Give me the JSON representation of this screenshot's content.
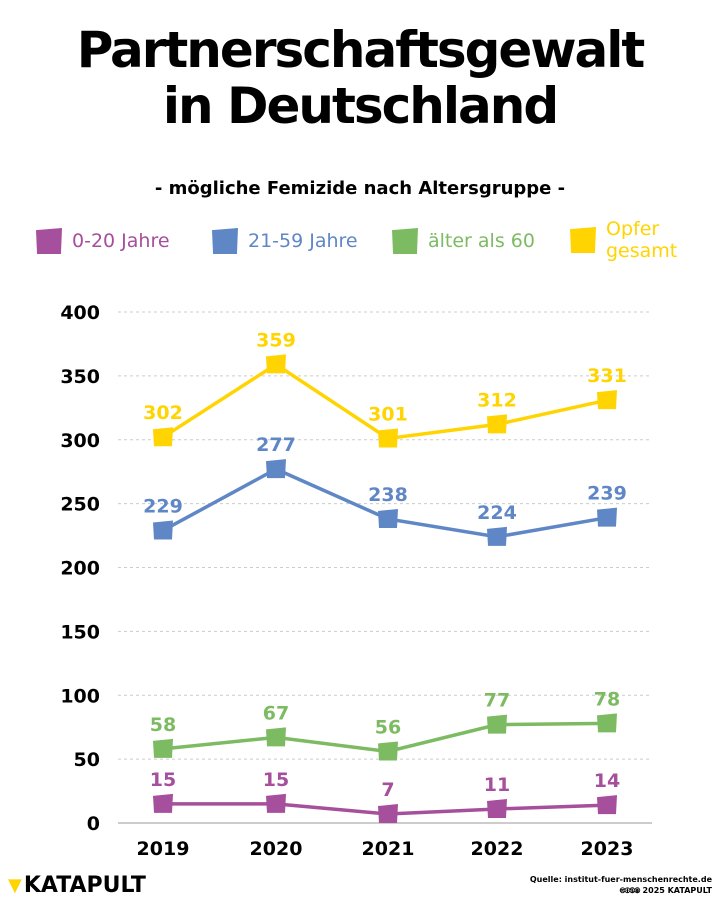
{
  "title_line1": "Partnerschaftsgewalt",
  "title_line2": "in Deutschland",
  "subtitle": "- mögliche Femizide nach Altersgruppe -",
  "chart_data": {
    "type": "line",
    "x": [
      "2019",
      "2020",
      "2021",
      "2022",
      "2023"
    ],
    "ylim": [
      0,
      400
    ],
    "yticks": [
      "0",
      "50",
      "100",
      "150",
      "200",
      "250",
      "300",
      "350",
      "400"
    ],
    "grid": true,
    "legend_placement": "top",
    "series": [
      {
        "name": "0-20 Jahre",
        "color": "#A64F9C",
        "values": [
          15,
          15,
          7,
          11,
          14
        ]
      },
      {
        "name": "21-59 Jahre",
        "color": "#5F87C6",
        "values": [
          229,
          277,
          238,
          224,
          239
        ]
      },
      {
        "name": "älter als 60",
        "color": "#7DBB63",
        "values": [
          58,
          67,
          56,
          77,
          78
        ]
      },
      {
        "name": "Opfer gesamt",
        "color": "#FFD400",
        "values": [
          302,
          359,
          301,
          312,
          331
        ]
      }
    ]
  },
  "footer": {
    "logo": "KATAPULT",
    "source": "Quelle: institut-fuer-menschenrechte.de",
    "copyright": "🅭🅯🄏🄍 2025 KATAPULT"
  }
}
